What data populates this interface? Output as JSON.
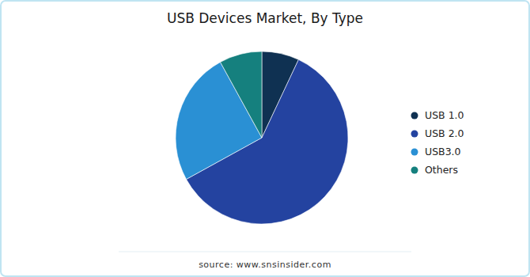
{
  "chart_data": {
    "type": "pie",
    "title": "USB Devices Market, By Type",
    "categories": [
      "USB 1.0",
      "USB 2.0",
      "USB3.0",
      "Others"
    ],
    "values": [
      7,
      60,
      25,
      8
    ],
    "colors": [
      "#0f3152",
      "#2443a0",
      "#2a90d4",
      "#15807e"
    ],
    "legend": "right",
    "source": "source: www.snsinsider.com"
  }
}
